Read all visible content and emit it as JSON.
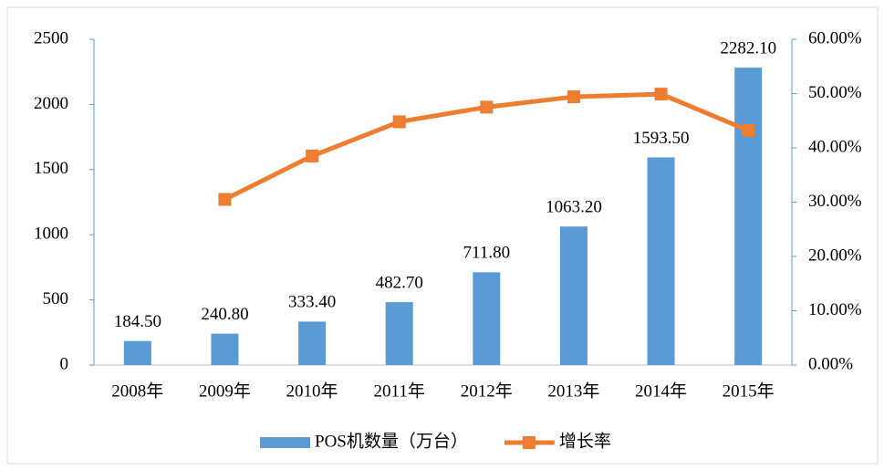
{
  "chart_data": {
    "type": "bar-line",
    "categories": [
      "2008年",
      "2009年",
      "2010年",
      "2011年",
      "2012年",
      "2013年",
      "2014年",
      "2015年"
    ],
    "series": [
      {
        "name": "POS机数量（万台）",
        "type": "bar",
        "color": "#5b9bd5",
        "values": [
          184.5,
          240.8,
          333.4,
          482.7,
          711.8,
          1063.2,
          1593.5,
          2282.1
        ],
        "value_labels": [
          "184.50",
          "240.80",
          "333.40",
          "482.70",
          "711.80",
          "1063.20",
          "1593.50",
          "2282.10"
        ]
      },
      {
        "name": "增长率",
        "type": "line",
        "axis": "y2",
        "color": "#ed7d31",
        "values": [
          null,
          30.5,
          38.5,
          44.8,
          47.5,
          49.4,
          49.9,
          43.2
        ]
      }
    ],
    "ylim": [
      0,
      2500
    ],
    "yticks": [
      0,
      500,
      1000,
      1500,
      2000,
      2500
    ],
    "y2lim": [
      0,
      60
    ],
    "y2ticks": [
      {
        "value": 0,
        "label": "0.00%"
      },
      {
        "value": 10,
        "label": "10.00%"
      },
      {
        "value": 20,
        "label": "20.00%"
      },
      {
        "value": 30,
        "label": "30.00%"
      },
      {
        "value": 40,
        "label": "40.00%"
      },
      {
        "value": 50,
        "label": "50.00%"
      },
      {
        "value": 60,
        "label": "60.00%"
      }
    ],
    "legend": "bottom"
  }
}
